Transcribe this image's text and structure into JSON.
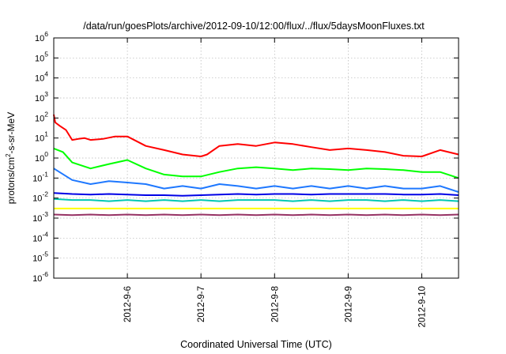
{
  "chart_data": {
    "type": "line",
    "title": "/data/run/goesPlots/archive/2012-09-10/12:00/flux/../flux/5daysMoonFluxes.txt",
    "xlabel": "Coordinated Universal Time (UTC)",
    "ylabel": {
      "prefix": "protons/cm",
      "sup": "2",
      "suffix": "-s-sr-MeV"
    },
    "xlim": [
      "2012-09-05T00:00",
      "2012-09-10T12:00"
    ],
    "ylim": [
      1e-06,
      1000000.0
    ],
    "yscale": "log",
    "grid": true,
    "legend": "none",
    "x_ticks": [
      {
        "x": "2012-09-06T00:00",
        "label": "2012-9-6"
      },
      {
        "x": "2012-09-07T00:00",
        "label": "2012-9-7"
      },
      {
        "x": "2012-09-08T00:00",
        "label": "2012-9-8"
      },
      {
        "x": "2012-09-09T00:00",
        "label": "2012-9-9"
      },
      {
        "x": "2012-09-10T00:00",
        "label": "2012-9-10"
      }
    ],
    "y_ticks": [
      {
        "v": 1000000.0,
        "base": "10",
        "exp": "6"
      },
      {
        "v": 100000.0,
        "base": "10",
        "exp": "5"
      },
      {
        "v": 10000.0,
        "base": "10",
        "exp": "4"
      },
      {
        "v": 1000.0,
        "base": "10",
        "exp": "3"
      },
      {
        "v": 100.0,
        "base": "10",
        "exp": "2"
      },
      {
        "v": 10.0,
        "base": "10",
        "exp": "1"
      },
      {
        "v": 1.0,
        "base": "10",
        "exp": "0"
      },
      {
        "v": 0.1,
        "base": "10",
        "exp": "-1"
      },
      {
        "v": 0.01,
        "base": "10",
        "exp": "-2"
      },
      {
        "v": 0.001,
        "base": "10",
        "exp": "-3"
      },
      {
        "v": 0.0001,
        "base": "10",
        "exp": "-4"
      },
      {
        "v": 1e-05,
        "base": "10",
        "exp": "-5"
      },
      {
        "v": 1e-06,
        "base": "10",
        "exp": "-6"
      }
    ],
    "series": [
      {
        "color": "#ff0000",
        "x": [
          "2012-09-05T00:00",
          "2012-09-05T00:30",
          "2012-09-05T02:00",
          "2012-09-05T04:00",
          "2012-09-05T06:00",
          "2012-09-05T08:00",
          "2012-09-05T10:00",
          "2012-09-05T12:00",
          "2012-09-05T16:00",
          "2012-09-05T20:00",
          "2012-09-06T00:00",
          "2012-09-06T06:00",
          "2012-09-06T12:00",
          "2012-09-06T18:00",
          "2012-09-07T00:00",
          "2012-09-07T02:00",
          "2012-09-07T06:00",
          "2012-09-07T12:00",
          "2012-09-07T18:00",
          "2012-09-08T00:00",
          "2012-09-08T06:00",
          "2012-09-08T12:00",
          "2012-09-08T18:00",
          "2012-09-09T00:00",
          "2012-09-09T06:00",
          "2012-09-09T12:00",
          "2012-09-09T18:00",
          "2012-09-10T00:00",
          "2012-09-10T06:00",
          "2012-09-10T12:00"
        ],
        "y": [
          150,
          60,
          40,
          25,
          8,
          9,
          10,
          8,
          9,
          12,
          12,
          4,
          2.5,
          1.5,
          1.2,
          1.5,
          4,
          5,
          4,
          6,
          5,
          3.5,
          2.5,
          3,
          2.5,
          2,
          1.3,
          1.2,
          2.5,
          1.5
        ]
      },
      {
        "color": "#00ff00",
        "x": [
          "2012-09-05T00:00",
          "2012-09-05T03:00",
          "2012-09-05T06:00",
          "2012-09-05T12:00",
          "2012-09-05T18:00",
          "2012-09-06T00:00",
          "2012-09-06T06:00",
          "2012-09-06T12:00",
          "2012-09-06T18:00",
          "2012-09-07T00:00",
          "2012-09-07T06:00",
          "2012-09-07T12:00",
          "2012-09-07T18:00",
          "2012-09-08T00:00",
          "2012-09-08T06:00",
          "2012-09-08T12:00",
          "2012-09-08T18:00",
          "2012-09-09T00:00",
          "2012-09-09T06:00",
          "2012-09-09T12:00",
          "2012-09-09T18:00",
          "2012-09-10T00:00",
          "2012-09-10T06:00",
          "2012-09-10T12:00"
        ],
        "y": [
          3,
          2,
          0.6,
          0.3,
          0.5,
          0.8,
          0.3,
          0.15,
          0.12,
          0.12,
          0.2,
          0.3,
          0.35,
          0.3,
          0.25,
          0.3,
          0.28,
          0.25,
          0.3,
          0.28,
          0.25,
          0.2,
          0.2,
          0.1
        ]
      },
      {
        "color": "#1e78ff",
        "x": [
          "2012-09-05T00:00",
          "2012-09-05T06:00",
          "2012-09-05T12:00",
          "2012-09-05T18:00",
          "2012-09-06T00:00",
          "2012-09-06T06:00",
          "2012-09-06T12:00",
          "2012-09-06T18:00",
          "2012-09-07T00:00",
          "2012-09-07T06:00",
          "2012-09-07T12:00",
          "2012-09-07T18:00",
          "2012-09-08T00:00",
          "2012-09-08T06:00",
          "2012-09-08T12:00",
          "2012-09-08T18:00",
          "2012-09-09T00:00",
          "2012-09-09T06:00",
          "2012-09-09T12:00",
          "2012-09-09T18:00",
          "2012-09-10T00:00",
          "2012-09-10T06:00",
          "2012-09-10T12:00"
        ],
        "y": [
          0.3,
          0.08,
          0.05,
          0.07,
          0.06,
          0.05,
          0.03,
          0.04,
          0.03,
          0.05,
          0.04,
          0.03,
          0.04,
          0.03,
          0.04,
          0.03,
          0.04,
          0.03,
          0.04,
          0.03,
          0.03,
          0.04,
          0.02
        ]
      },
      {
        "color": "#0000e6",
        "x": [
          "2012-09-05T00:00",
          "2012-09-05T06:00",
          "2012-09-05T12:00",
          "2012-09-05T18:00",
          "2012-09-06T00:00",
          "2012-09-06T06:00",
          "2012-09-06T12:00",
          "2012-09-06T18:00",
          "2012-09-07T00:00",
          "2012-09-07T06:00",
          "2012-09-07T12:00",
          "2012-09-07T18:00",
          "2012-09-08T00:00",
          "2012-09-08T06:00",
          "2012-09-08T12:00",
          "2012-09-08T18:00",
          "2012-09-09T00:00",
          "2012-09-09T06:00",
          "2012-09-09T12:00",
          "2012-09-09T18:00",
          "2012-09-10T00:00",
          "2012-09-10T06:00",
          "2012-09-10T12:00"
        ],
        "y": [
          0.018,
          0.016,
          0.015,
          0.016,
          0.015,
          0.014,
          0.014,
          0.013,
          0.014,
          0.015,
          0.016,
          0.015,
          0.016,
          0.016,
          0.015,
          0.016,
          0.016,
          0.016,
          0.016,
          0.015,
          0.015,
          0.016,
          0.014
        ]
      },
      {
        "color": "#00c8b4",
        "x": [
          "2012-09-05T00:00",
          "2012-09-05T06:00",
          "2012-09-05T12:00",
          "2012-09-05T18:00",
          "2012-09-06T00:00",
          "2012-09-06T06:00",
          "2012-09-06T12:00",
          "2012-09-06T18:00",
          "2012-09-07T00:00",
          "2012-09-07T06:00",
          "2012-09-07T12:00",
          "2012-09-07T18:00",
          "2012-09-08T00:00",
          "2012-09-08T06:00",
          "2012-09-08T12:00",
          "2012-09-08T18:00",
          "2012-09-09T00:00",
          "2012-09-09T06:00",
          "2012-09-09T12:00",
          "2012-09-09T18:00",
          "2012-09-10T00:00",
          "2012-09-10T06:00",
          "2012-09-10T12:00"
        ],
        "y": [
          0.009,
          0.008,
          0.008,
          0.007,
          0.008,
          0.007,
          0.008,
          0.007,
          0.008,
          0.007,
          0.008,
          0.008,
          0.008,
          0.007,
          0.008,
          0.007,
          0.008,
          0.008,
          0.007,
          0.008,
          0.007,
          0.008,
          0.007
        ]
      },
      {
        "color": "#ffff00",
        "x": [
          "2012-09-05T00:00",
          "2012-09-06T00:00",
          "2012-09-07T00:00",
          "2012-09-08T00:00",
          "2012-09-09T00:00",
          "2012-09-10T00:00",
          "2012-09-10T12:00"
        ],
        "y": [
          0.003,
          0.003,
          0.003,
          0.003,
          0.003,
          0.003,
          0.003
        ]
      },
      {
        "color": "#963264",
        "x": [
          "2012-09-05T00:00",
          "2012-09-05T06:00",
          "2012-09-05T12:00",
          "2012-09-05T18:00",
          "2012-09-06T00:00",
          "2012-09-06T06:00",
          "2012-09-06T12:00",
          "2012-09-06T18:00",
          "2012-09-07T00:00",
          "2012-09-07T06:00",
          "2012-09-07T12:00",
          "2012-09-07T18:00",
          "2012-09-08T00:00",
          "2012-09-08T06:00",
          "2012-09-08T12:00",
          "2012-09-08T18:00",
          "2012-09-09T00:00",
          "2012-09-09T06:00",
          "2012-09-09T12:00",
          "2012-09-09T18:00",
          "2012-09-10T00:00",
          "2012-09-10T06:00",
          "2012-09-10T12:00"
        ],
        "y": [
          0.0015,
          0.0014,
          0.0015,
          0.0014,
          0.0015,
          0.0014,
          0.0015,
          0.0014,
          0.0015,
          0.0014,
          0.0015,
          0.0014,
          0.0015,
          0.0014,
          0.0015,
          0.0014,
          0.0015,
          0.0014,
          0.0015,
          0.0014,
          0.0015,
          0.0014,
          0.0015
        ]
      }
    ]
  }
}
